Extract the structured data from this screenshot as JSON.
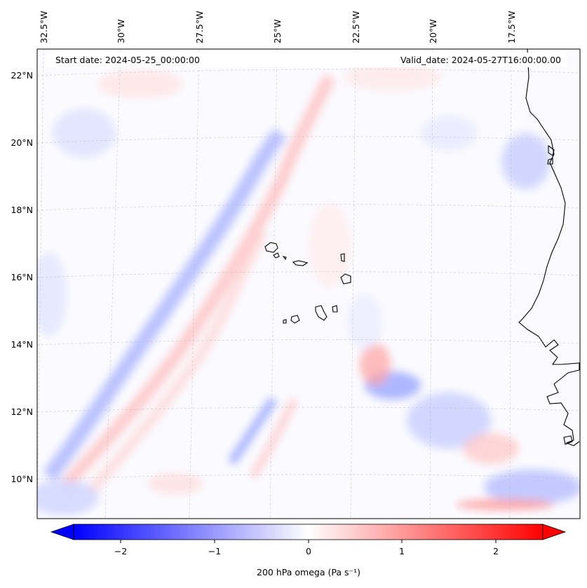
{
  "map": {
    "start_date_label": "Start date: 2024-05-25_00:00:00",
    "valid_date_label": "Valid_date: 2024-05-27T16:00:00.00",
    "lon_labels": [
      "32.5°W",
      "30°W",
      "27.5°W",
      "25°W",
      "22.5°W",
      "20°W",
      "17.5°W"
    ],
    "lat_labels": [
      "22°N",
      "20°N",
      "18°N",
      "16°N",
      "14°N",
      "12°N",
      "10°N"
    ]
  },
  "colorbar": {
    "label": "200 hPa omega (Pa s⁻¹)",
    "ticks": [
      "−2",
      "−1",
      "0",
      "1",
      "2"
    ],
    "tick_values": [
      -2,
      -1,
      0,
      1,
      2
    ],
    "min": -2.5,
    "max": 2.5,
    "colors": {
      "negative": "#0000ff",
      "zero": "#ffffff",
      "positive": "#ff0000"
    }
  }
}
